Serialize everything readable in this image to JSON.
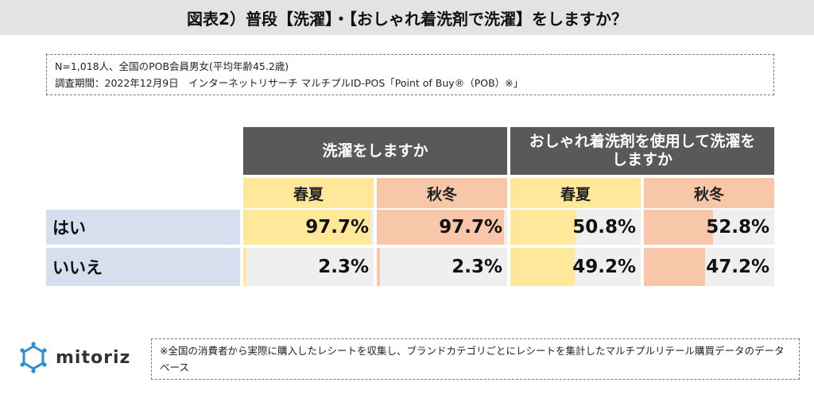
{
  "title": "図表2）普段【洗濯】・【おしゃれ着洗剤で洗濯】をしますか？",
  "source": {
    "line1": "N=1,018人、全国のPOB会員男女(平均年齢45.2歳)",
    "line2": "調査期間：2022年12月9日　インターネットリサーチ マルチプルID-POS「Point of Buy®（POB）※」"
  },
  "chart_data": {
    "type": "table",
    "groups": [
      "洗濯をしますか",
      "おしゃれ着洗剤を使用して洗濯をしますか"
    ],
    "seasons": [
      "春夏",
      "秋冬",
      "春夏",
      "秋冬"
    ],
    "rows": [
      {
        "label": "はい",
        "values": [
          97.7,
          97.7,
          50.8,
          52.8
        ],
        "display": [
          "97.7%",
          "97.7%",
          "50.8%",
          "52.8%"
        ]
      },
      {
        "label": "いいえ",
        "values": [
          2.3,
          2.3,
          49.2,
          47.2
        ],
        "display": [
          "2.3%",
          "2.3%",
          "49.2%",
          "47.2%"
        ]
      }
    ],
    "unit": "%",
    "colors": {
      "spring_summer": "#ffe89a",
      "autumn_winter": "#f8c6a8",
      "header": "#595959",
      "row_label": "#d5dfee",
      "cell_bg": "#efefef"
    }
  },
  "logo": {
    "name": "mitoriz",
    "icon": "mitoriz-logo-icon"
  },
  "note": "※全国の消費者から実際に購入したレシートを収集し、ブランドカテゴリごとにレシートを集計したマルチプルリテール購買データのデータベース"
}
